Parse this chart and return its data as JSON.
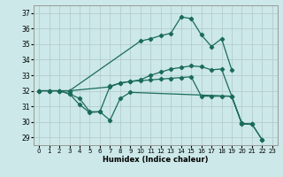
{
  "xlabel": "Humidex (Indice chaleur)",
  "xlim": [
    -0.5,
    23.5
  ],
  "ylim": [
    28.5,
    37.5
  ],
  "yticks": [
    29,
    30,
    31,
    32,
    33,
    34,
    35,
    36,
    37
  ],
  "xticks": [
    0,
    1,
    2,
    3,
    4,
    5,
    6,
    7,
    8,
    9,
    10,
    11,
    12,
    13,
    14,
    15,
    16,
    17,
    18,
    19,
    20,
    21,
    22,
    23
  ],
  "background_color": "#cce8e8",
  "grid_color": "#b0c8c8",
  "line_color": "#1a6b5a",
  "lines": [
    {
      "x": [
        0,
        1,
        2,
        3,
        10,
        11,
        12,
        13,
        14,
        15,
        16,
        17,
        18,
        19
      ],
      "y": [
        32,
        32,
        32,
        32,
        35.2,
        35.35,
        35.55,
        35.7,
        36.75,
        36.65,
        35.6,
        34.85,
        35.35,
        33.35
      ]
    },
    {
      "x": [
        0,
        1,
        2,
        3,
        7,
        8,
        9,
        10,
        11,
        12,
        13,
        14,
        15,
        16,
        17,
        18,
        19,
        20,
        21
      ],
      "y": [
        32,
        32,
        32,
        32,
        32.25,
        32.5,
        32.6,
        32.7,
        33.0,
        33.2,
        33.4,
        33.5,
        33.6,
        33.55,
        33.35,
        33.4,
        31.65,
        29.85,
        29.85
      ]
    },
    {
      "x": [
        0,
        1,
        2,
        3,
        4,
        5,
        6,
        7,
        8,
        9,
        10,
        11,
        12,
        13,
        14,
        15,
        16,
        17,
        18,
        19,
        20,
        21,
        22
      ],
      "y": [
        32,
        32,
        32,
        31.8,
        31.1,
        30.6,
        30.65,
        32.3,
        32.5,
        32.6,
        32.65,
        32.7,
        32.75,
        32.8,
        32.85,
        32.9,
        31.65,
        31.65,
        31.65,
        31.65,
        29.9,
        29.85,
        28.85
      ]
    },
    {
      "x": [
        2,
        3,
        4,
        5,
        6,
        7,
        8,
        9,
        19,
        20,
        21,
        22
      ],
      "y": [
        32,
        31.8,
        31.5,
        30.65,
        30.65,
        30.1,
        31.5,
        31.9,
        31.65,
        29.9,
        29.85,
        28.85
      ]
    }
  ]
}
